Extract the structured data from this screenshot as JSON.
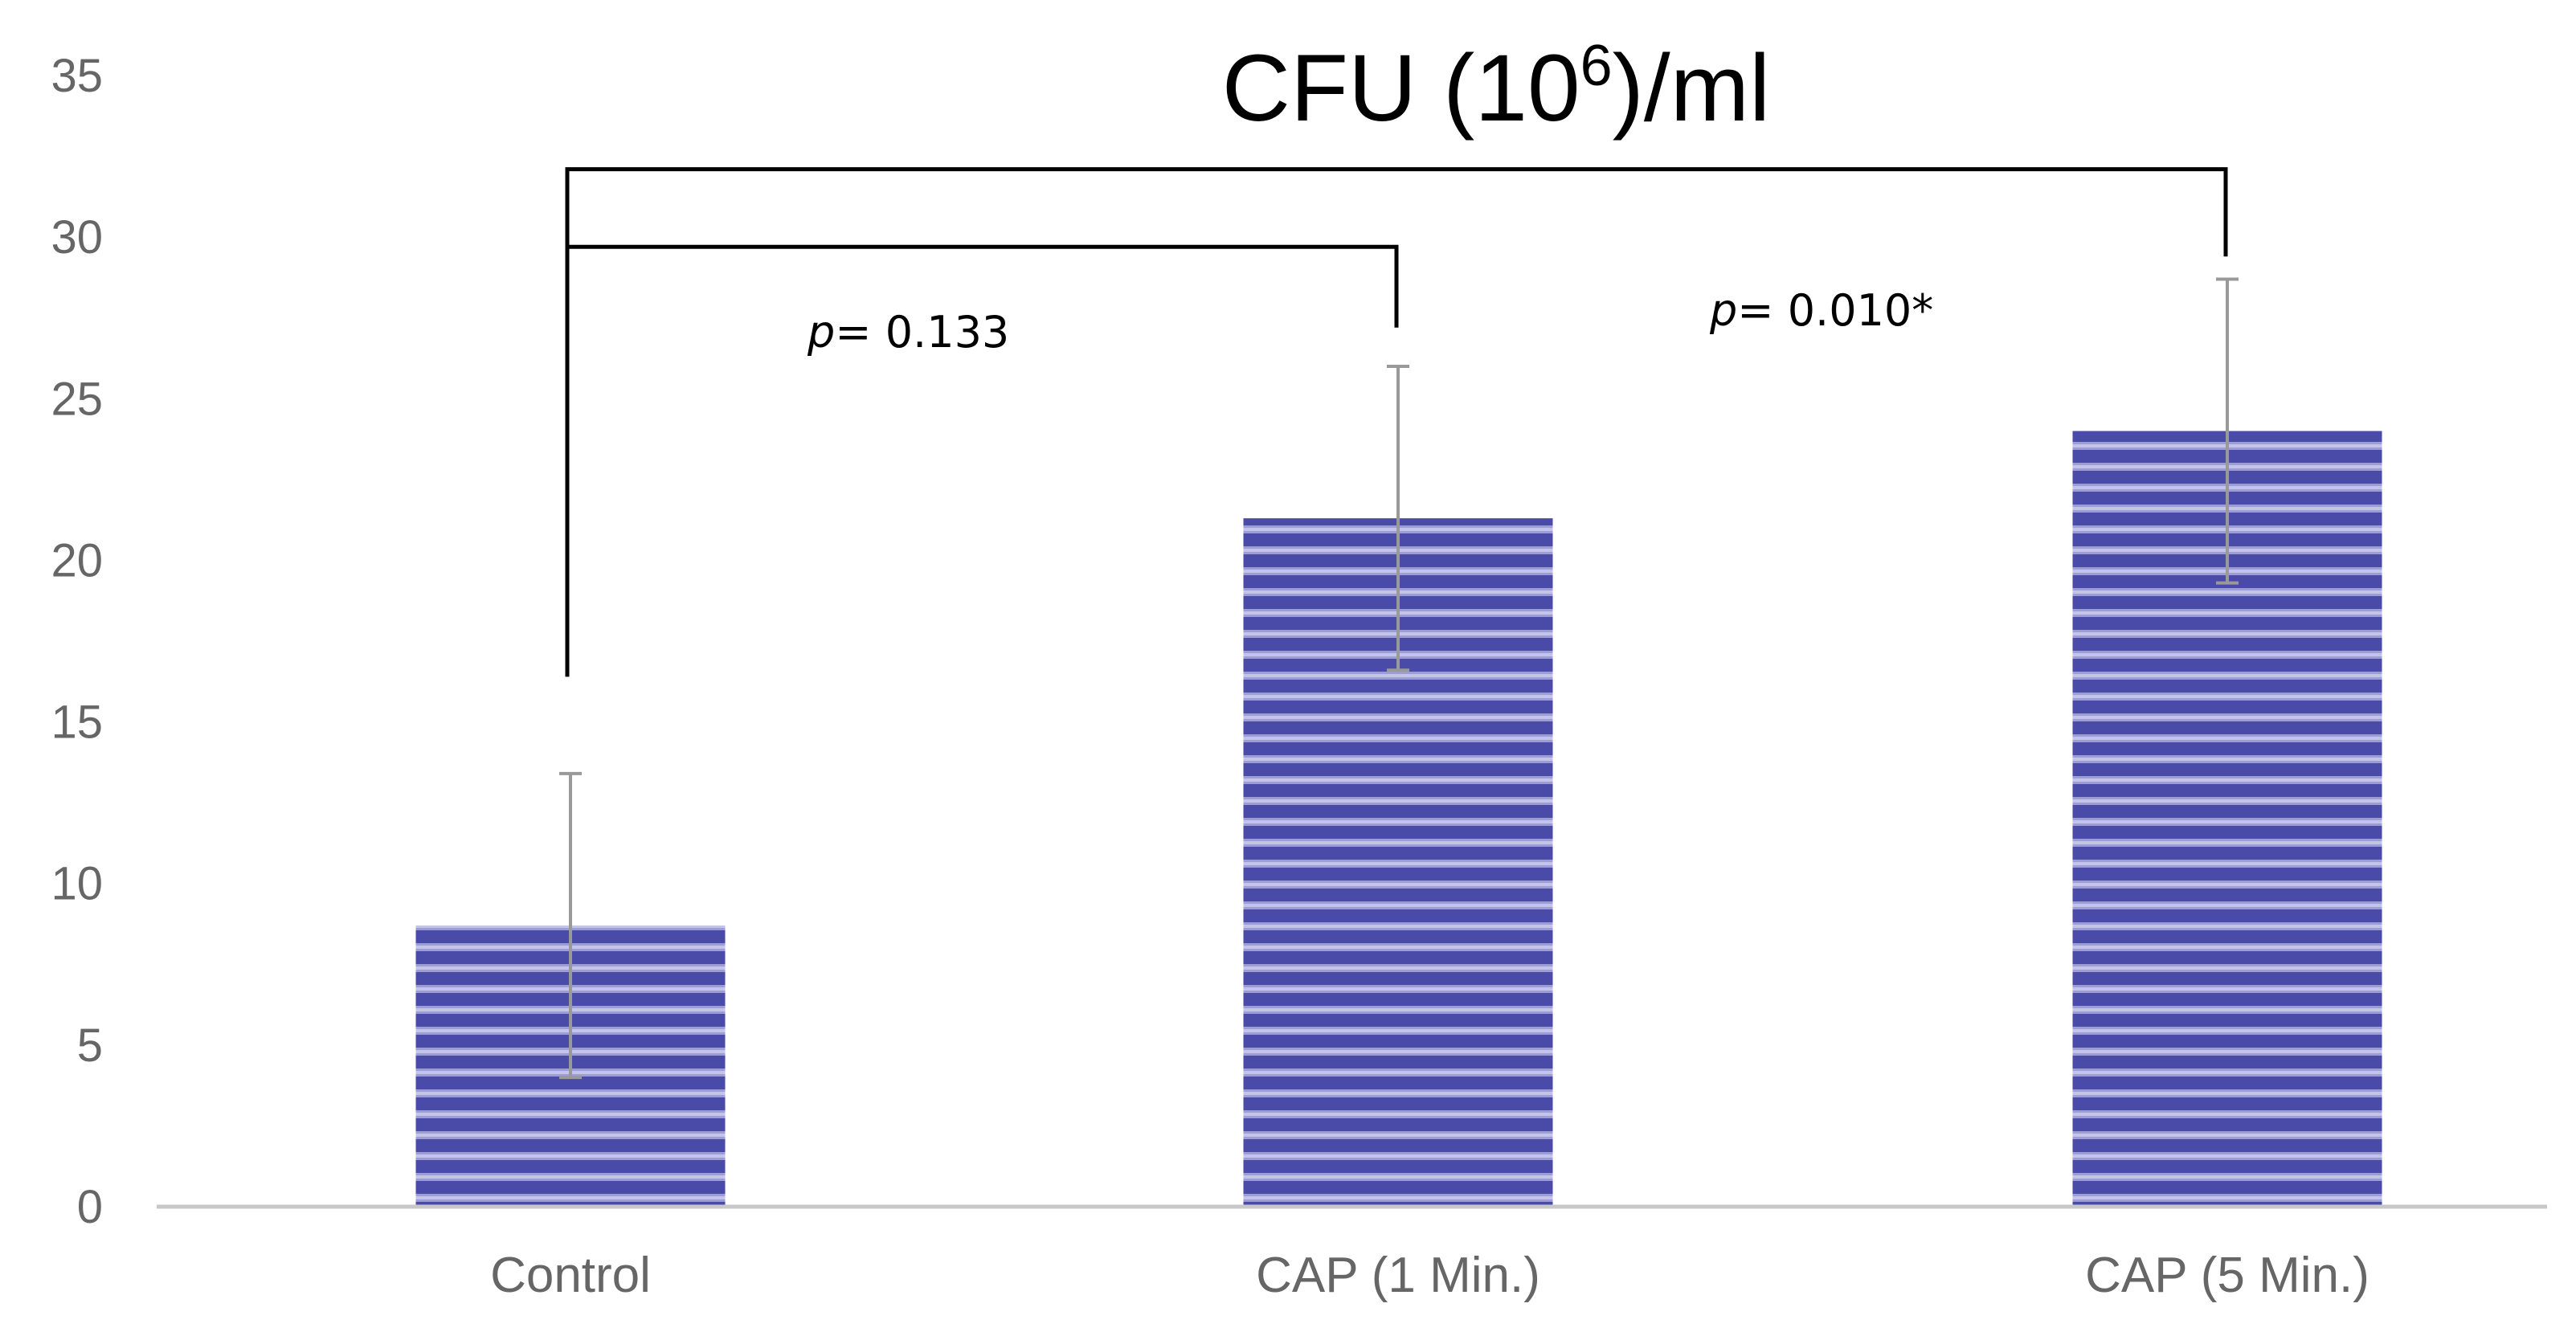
{
  "chart_data": {
    "type": "bar",
    "title": {
      "base": "CFU (10",
      "superscript": "6",
      "suffix": ")/ml"
    },
    "xlabel": "",
    "ylabel": "",
    "ylim": [
      0,
      35
    ],
    "yticks": [
      0,
      5,
      10,
      15,
      20,
      25,
      30,
      35
    ],
    "grid": false,
    "categories": [
      "Control",
      "CAP (1 Min.)",
      "CAP (5 Min.)"
    ],
    "values": [
      8.7,
      21.3,
      24.0
    ],
    "error_low": [
      4.0,
      16.6,
      19.3
    ],
    "error_high": [
      13.4,
      26.0,
      28.7
    ],
    "bar_color": "#4a4aa8",
    "bar_stripe_color": "#9d9dd6",
    "error_bar_color": "#999999",
    "axis_color": "#c8c8c8",
    "significance": [
      {
        "from": 0,
        "to": 1,
        "bracket_level": 29.7,
        "from_level": 16.4,
        "to_level": 27.2,
        "label_prefix": "p",
        "label_value": "= 0.133"
      },
      {
        "from": 0,
        "to": 2,
        "bracket_level": 32.1,
        "from_level": 16.4,
        "to_level": 29.4,
        "label_prefix": "p",
        "label_value": "= 0.010*"
      }
    ]
  }
}
